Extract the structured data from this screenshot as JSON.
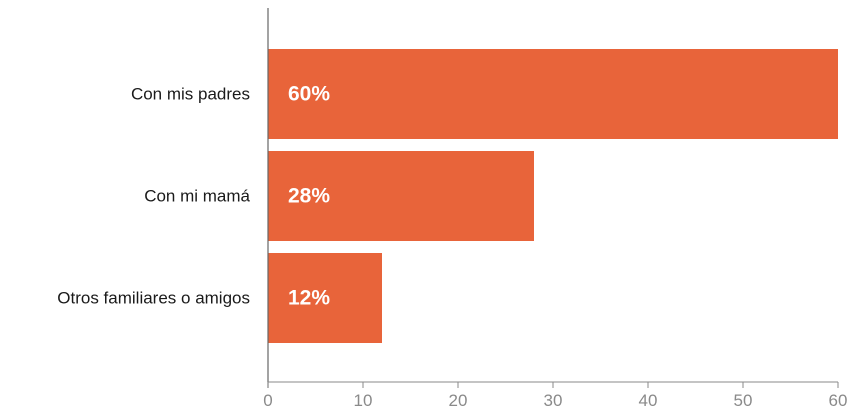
{
  "chart_data": {
    "type": "bar",
    "orientation": "horizontal",
    "categories": [
      "Con mis padres",
      "Con mi mamá",
      "Otros familiares o amigos"
    ],
    "values": [
      60,
      28,
      12
    ],
    "data_labels": [
      "60%",
      "28%",
      "12%"
    ],
    "xlim": [
      0,
      60
    ],
    "x_ticks": [
      0,
      10,
      20,
      30,
      40,
      50,
      60
    ],
    "grid": false,
    "legend": "none",
    "bar_color": "#E8643A"
  }
}
